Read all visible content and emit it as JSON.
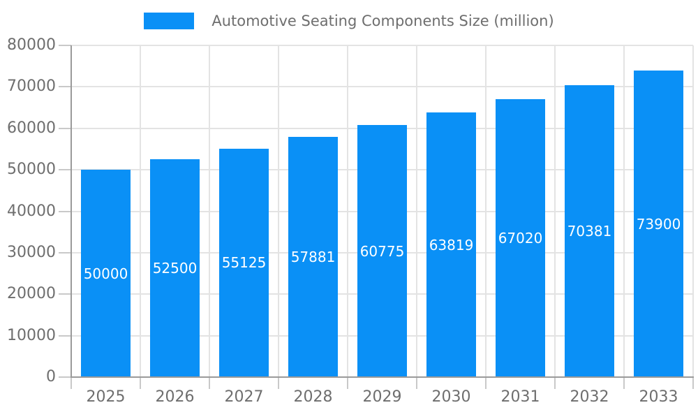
{
  "legend": {
    "label": "Automotive Seating Components Size (million)"
  },
  "chart_data": {
    "type": "bar",
    "title": "Automotive Seating Components Size (million)",
    "categories": [
      "2025",
      "2026",
      "2027",
      "2028",
      "2029",
      "2030",
      "2031",
      "2032",
      "2033"
    ],
    "values": [
      50000,
      52500,
      55125,
      57881,
      60775,
      63819,
      67020,
      70381,
      73900
    ],
    "xlabel": "",
    "ylabel": "",
    "ylim": [
      0,
      80000
    ],
    "yticks": [
      0,
      10000,
      20000,
      30000,
      40000,
      50000,
      60000,
      70000,
      80000
    ],
    "grid": true,
    "legend_position": "top",
    "bar_labels_inside": true,
    "colors": {
      "bar": "#0a90f6",
      "bar_label": "#ffffff",
      "grid": "#e3e3e3",
      "tick": "#c9c9c9",
      "axis": "#9a9a9a",
      "text": "#6e6e6e",
      "background": "#ffffff"
    }
  }
}
